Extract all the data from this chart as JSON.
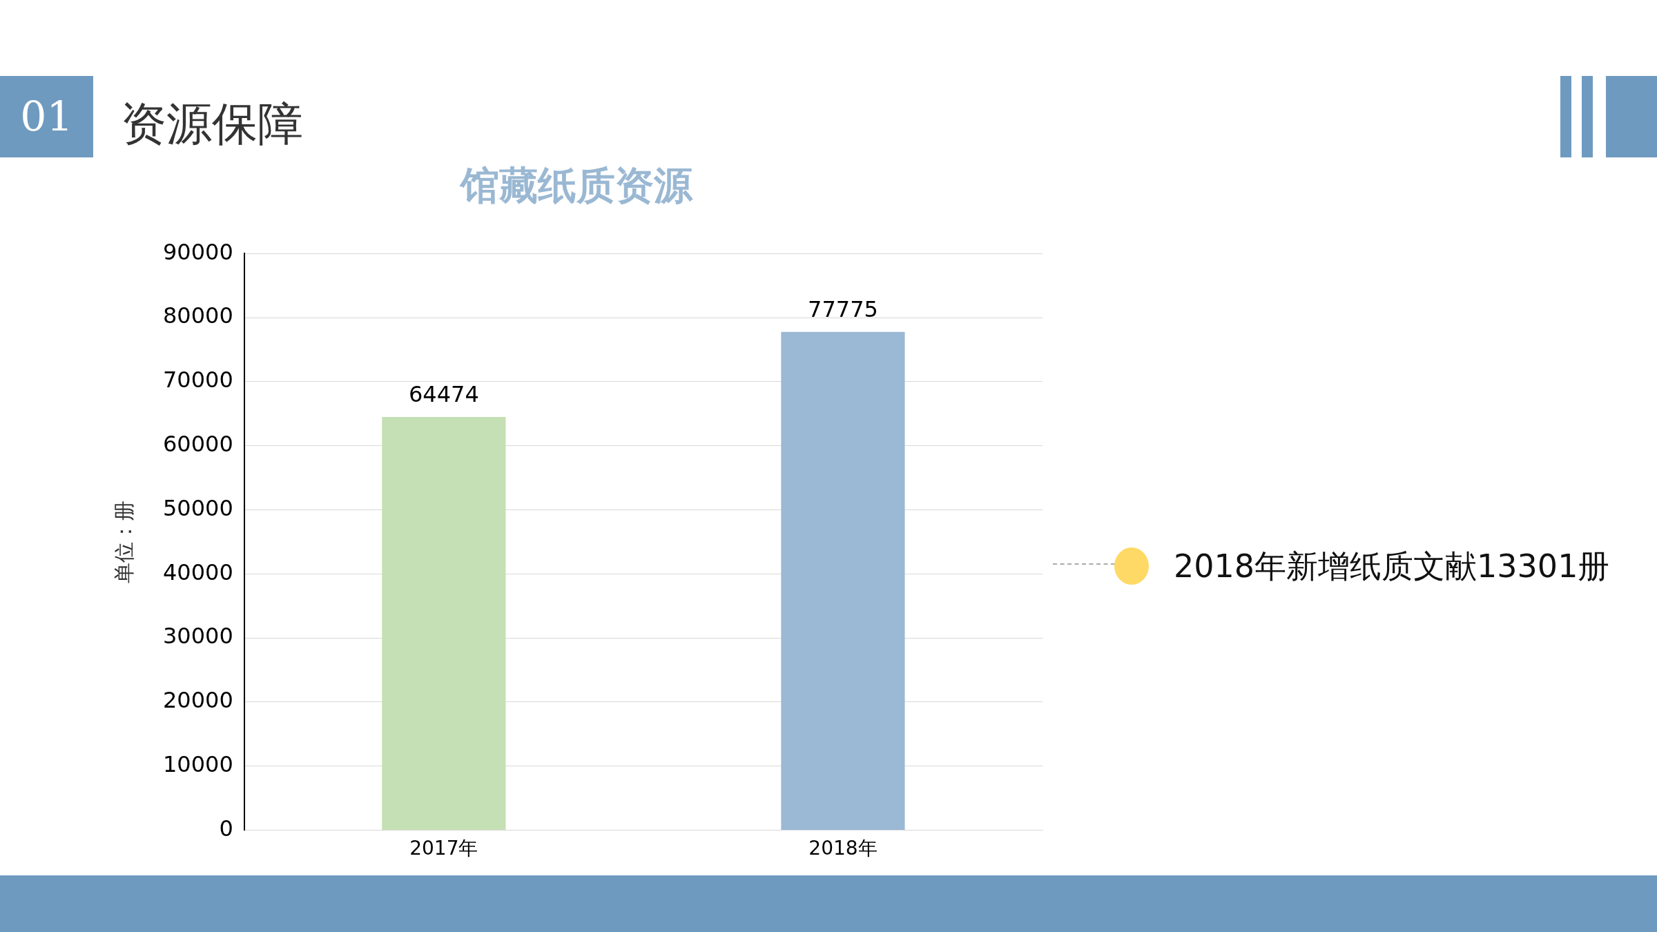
{
  "chart_data": {
    "type": "bar",
    "title": "馆藏纸质资源",
    "ylabel": "单位：册",
    "categories": [
      "2017年",
      "2018年"
    ],
    "values": [
      64474,
      77775
    ],
    "colors": [
      "#c5e0b4",
      "#9bb8d4"
    ],
    "ylim": [
      0,
      90000
    ],
    "yticks": [
      0,
      10000,
      20000,
      30000,
      40000,
      50000,
      60000,
      70000,
      80000,
      90000
    ],
    "grid": "y",
    "legend": false,
    "data_labels": true,
    "annotations": [
      "01",
      "资源保障",
      "2018年新增纸质文献13301册"
    ]
  }
}
